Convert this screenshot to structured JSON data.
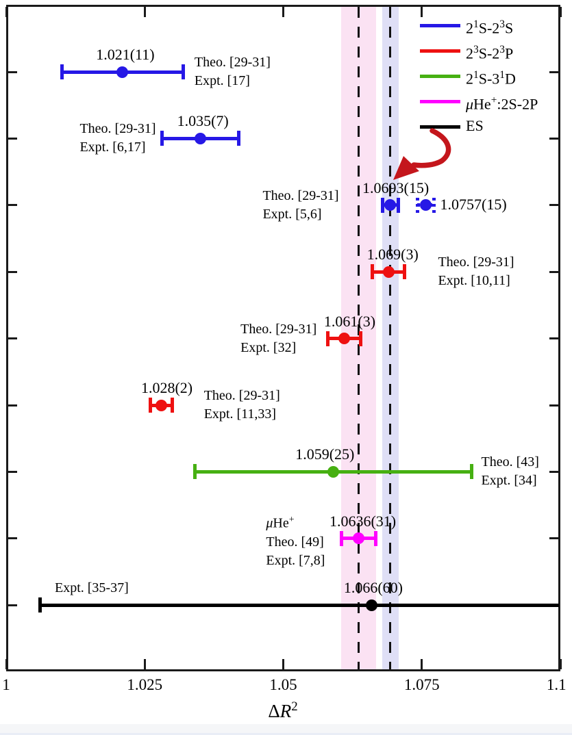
{
  "page": {
    "background": "#ffffff",
    "footer_strip_color": "#f5f6f8",
    "footer_line_color": "#e9edf6",
    "frame_color": "#1a1a1a"
  },
  "chart_data": {
    "type": "scatter",
    "title": "",
    "xlabel_text": "ΔR²",
    "xlabel_html": "Δ<i>R</i><sup>2</sup>",
    "xlim": [
      1.0,
      1.1
    ],
    "xticks": [
      1.0,
      1.025,
      1.05,
      1.075,
      1.1
    ],
    "xtick_labels": [
      "1",
      "1.025",
      "1.05",
      "1.075",
      "1.1"
    ],
    "y_rows": 9,
    "grid": false,
    "legend": {
      "position": "top-right",
      "entries": [
        {
          "label_text": "2¹S-2³S",
          "label_html": "2<sup>1</sup>S-2<sup>3</sup>S",
          "color": "#2618e6"
        },
        {
          "label_text": "2³S-2³P",
          "label_html": "2<sup>3</sup>S-2<sup>3</sup>P",
          "color": "#ee1111"
        },
        {
          "label_text": "2¹S-3¹D",
          "label_html": "2<sup>1</sup>S-3<sup>1</sup>D",
          "color": "#46b012"
        },
        {
          "label_text": "μHe⁺:2S-2P",
          "label_html": "<i>μ</i>He<sup>+</sup>:2S-2P",
          "color": "#ff00ff"
        },
        {
          "label_text": "ES",
          "label_html": "ES",
          "color": "#000000"
        }
      ]
    },
    "reference_bands": [
      {
        "name": "muhe-2s-2p",
        "center": 1.0636,
        "half_width": 0.0031,
        "fill": "#fbe2f3",
        "line_style": "dashed",
        "line_color": "#111111"
      },
      {
        "name": "21s-23s",
        "center": 1.0693,
        "half_width": 0.0015,
        "fill": "#dfdff6",
        "line_style": "dashed",
        "line_color": "#111111"
      }
    ],
    "points": [
      {
        "row": 1,
        "series": "2¹S-2³S",
        "color": "#2618e6",
        "value": 1.021,
        "error": 0.011,
        "value_label": "1.021(11)",
        "style": "solid",
        "refs": [
          "Theo. [29-31]",
          "Expt. [17]"
        ],
        "refs_side": "right"
      },
      {
        "row": 2,
        "series": "2¹S-2³S",
        "color": "#2618e6",
        "value": 1.035,
        "error": 0.007,
        "value_label": "1.035(7)",
        "style": "solid",
        "refs": [
          "Theo. [29-31]",
          "Expt. [6,17]"
        ],
        "refs_side": "left"
      },
      {
        "row": 3,
        "series": "2¹S-2³S",
        "color": "#2618e6",
        "value": 1.0693,
        "error": 0.0015,
        "value_label": "1.0693(15)",
        "style": "solid",
        "refs": [
          "Theo. [29-31]",
          "Expt. [5,6]"
        ],
        "refs_side": "left"
      },
      {
        "row": 3,
        "series": "2¹S-2³S",
        "color": "#2618e6",
        "value": 1.0757,
        "error": 0.0015,
        "value_label": "1.0757(15)",
        "style": "dotted",
        "refs": [],
        "refs_side": "none",
        "value_label_side": "right"
      },
      {
        "row": 4,
        "series": "2³S-2³P",
        "color": "#ee1111",
        "value": 1.069,
        "error": 0.003,
        "value_label": "1.069(3)",
        "style": "solid",
        "refs": [
          "Theo. [29-31]",
          "Expt. [10,11]"
        ],
        "refs_side": "right"
      },
      {
        "row": 5,
        "series": "2³S-2³P",
        "color": "#ee1111",
        "value": 1.061,
        "error": 0.003,
        "value_label": "1.061(3)",
        "style": "solid",
        "refs": [
          "Theo. [29-31]",
          "Expt. [32]"
        ],
        "refs_side": "left"
      },
      {
        "row": 6,
        "series": "2³S-2³P",
        "color": "#ee1111",
        "value": 1.028,
        "error": 0.002,
        "value_label": "1.028(2)",
        "style": "solid",
        "refs": [
          "Theo. [29-31]",
          "Expt. [11,33]"
        ],
        "refs_side": "right"
      },
      {
        "row": 7,
        "series": "2¹S-3¹D",
        "color": "#46b012",
        "value": 1.059,
        "error": 0.025,
        "value_label": "1.059(25)",
        "style": "solid",
        "refs": [
          "Theo. [43]",
          "Expt. [34]"
        ],
        "refs_side": "right"
      },
      {
        "row": 8,
        "series": "μHe⁺:2S-2P",
        "color": "#ff00ff",
        "value": 1.0636,
        "error": 0.0031,
        "value_label": "1.0636(31)",
        "style": "solid",
        "refs": [
          "<i>μ</i>He<sup>+</sup>",
          "Theo. [49]",
          "Expt. [7,8]"
        ],
        "refs_side": "left"
      },
      {
        "row": 9,
        "series": "ES",
        "color": "#000000",
        "value": 1.066,
        "error": 0.06,
        "value_label": "1.066(60)",
        "style": "solid",
        "refs": [
          "Expt. [35-37]"
        ],
        "refs_side": "above-left",
        "clipped_right": true
      }
    ],
    "annotation_arrow": {
      "color": "#c4161c",
      "points_to": "1.0693(15)"
    }
  }
}
